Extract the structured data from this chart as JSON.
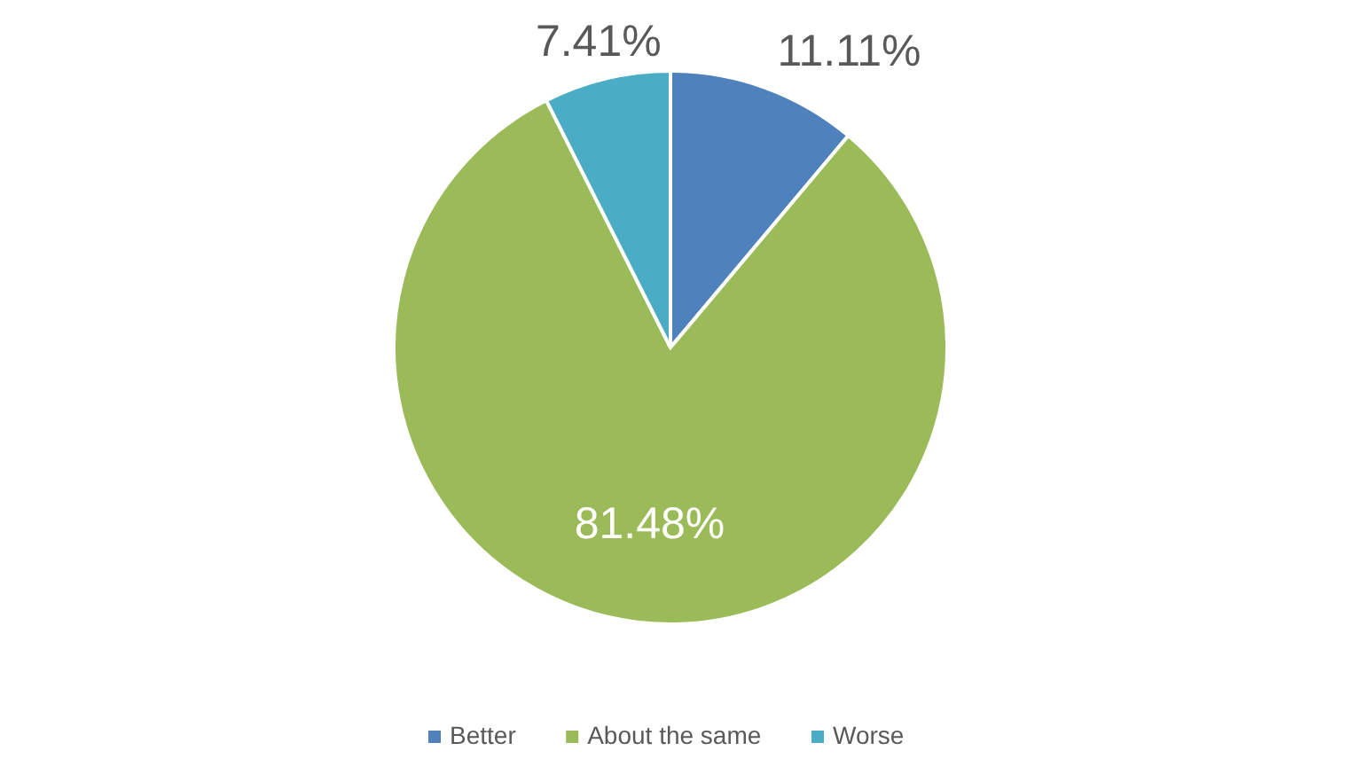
{
  "chart_data": {
    "type": "pie",
    "categories": [
      "Better",
      "About the same",
      "Worse"
    ],
    "values": [
      11.11,
      81.48,
      7.41
    ],
    "colors": [
      "#4f81bd",
      "#9bbb59",
      "#4bacc6"
    ],
    "value_labels": [
      "11.11%",
      "81.48%",
      "7.41%"
    ],
    "legend": "bottom"
  }
}
